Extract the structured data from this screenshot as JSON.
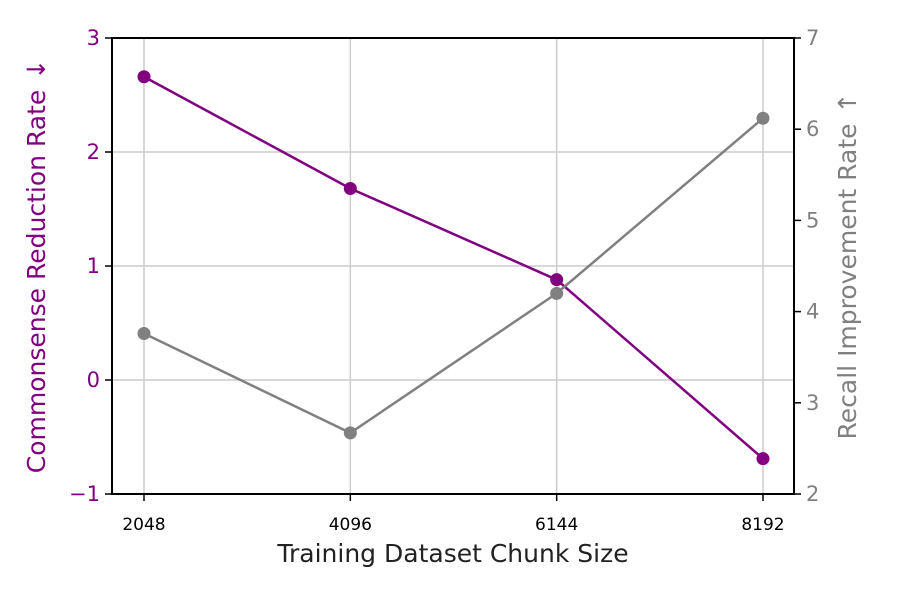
{
  "chart_data": {
    "type": "line",
    "xlabel": "Training Dataset Chunk Size",
    "ylabel": "Commonsense Reduction Rate",
    "ylabel_right": "Recall Improvement Rate",
    "ylabel_arrow": "↓",
    "ylabel_right_arrow": "↑",
    "categories": [
      "2048",
      "4096",
      "6144",
      "8192"
    ],
    "ylim": [
      -1,
      3
    ],
    "ylim_right": [
      2,
      7
    ],
    "yticks": [
      "−1",
      "0",
      "1",
      "2",
      "3"
    ],
    "yticks_right": [
      "2",
      "3",
      "4",
      "5",
      "6",
      "7"
    ],
    "grid": true,
    "series": [
      {
        "axis": "left",
        "color": "#800080",
        "values": [
          2.66,
          1.68,
          0.88,
          -0.69
        ]
      },
      {
        "axis": "right",
        "color": "#808080",
        "values": [
          3.76,
          2.67,
          4.2,
          6.12
        ]
      }
    ]
  }
}
